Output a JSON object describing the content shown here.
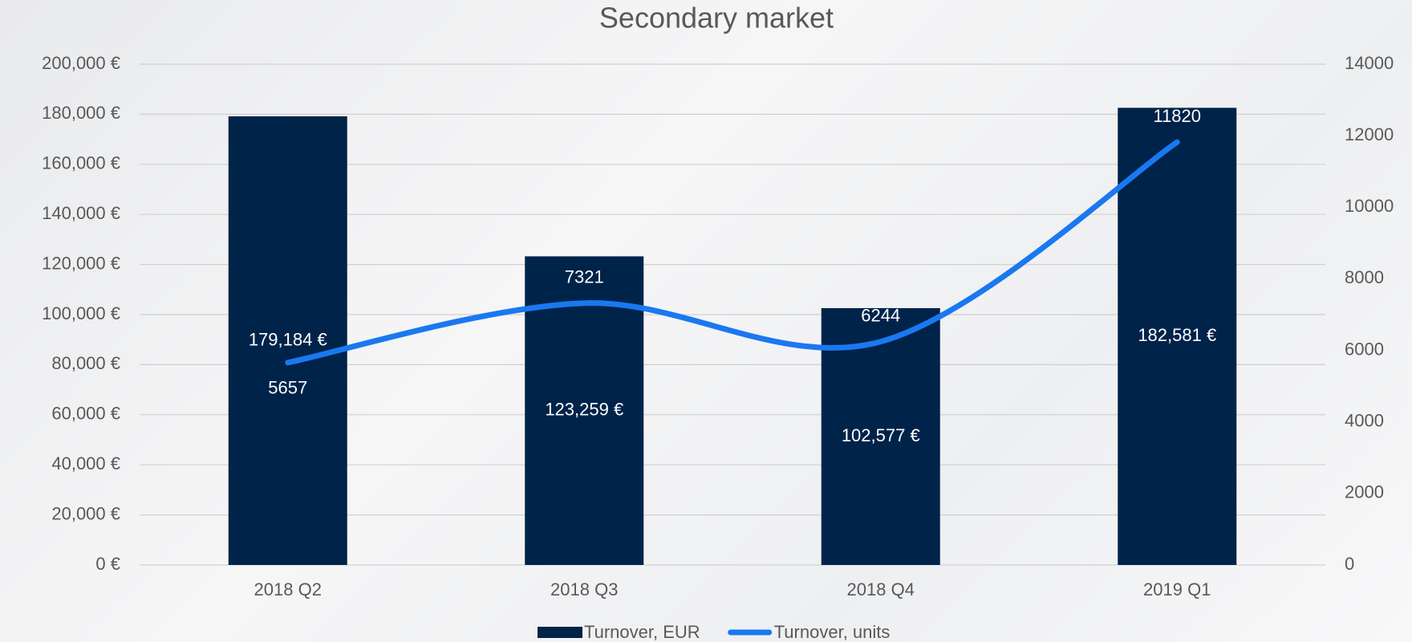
{
  "chart_data": {
    "type": "bar-line",
    "title": "Secondary market",
    "categories": [
      "2018 Q2",
      "2018 Q3",
      "2018 Q4",
      "2019 Q1"
    ],
    "series": [
      {
        "name": "Turnover, EUR",
        "type": "bar",
        "color": "#00234a",
        "values": [
          179184,
          123259,
          102577,
          182581
        ],
        "value_labels": [
          "179,184 €",
          "123,259 €",
          "102,577 €",
          "182,581 €"
        ]
      },
      {
        "name": "Turnover, units",
        "type": "line",
        "axis": "y2",
        "color": "#1a78f0",
        "values": [
          5657,
          7321,
          6244,
          11820
        ]
      }
    ],
    "ylim": [
      0,
      200000
    ],
    "yticks": [
      {
        "value": 0,
        "label": "0 €"
      },
      {
        "value": 20000,
        "label": "20,000 €"
      },
      {
        "value": 40000,
        "label": "40,000 €"
      },
      {
        "value": 60000,
        "label": "60,000 €"
      },
      {
        "value": 80000,
        "label": "80,000 €"
      },
      {
        "value": 100000,
        "label": "100,000 €"
      },
      {
        "value": 120000,
        "label": "120,000 €"
      },
      {
        "value": 140000,
        "label": "140,000 €"
      },
      {
        "value": 160000,
        "label": "160,000 €"
      },
      {
        "value": 180000,
        "label": "180,000 €"
      },
      {
        "value": 200000,
        "label": "200,000 €"
      }
    ],
    "y2lim": [
      0,
      14000
    ],
    "y2ticks": [
      0,
      2000,
      4000,
      6000,
      8000,
      10000,
      12000,
      14000
    ],
    "grid": true,
    "legend": "bottom"
  }
}
